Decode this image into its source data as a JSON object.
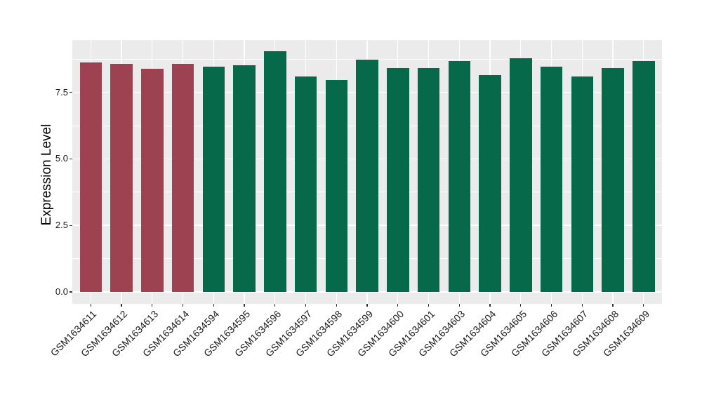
{
  "chart_data": {
    "type": "bar",
    "title": "",
    "xlabel": "",
    "ylabel": "Expression Level",
    "legend_position": "none",
    "grid": true,
    "panel_background": "#EBEBEB",
    "grid_color": "#FFFFFF",
    "axis_text_color": "#1A1A1A",
    "tick_mark_color": "#333333",
    "ylim": [
      -0.45,
      9.47
    ],
    "y_major_ticks": [
      {
        "value": 0.0,
        "label": "0.0"
      },
      {
        "value": 2.5,
        "label": "2.5"
      },
      {
        "value": 5.0,
        "label": "5.0"
      },
      {
        "value": 7.5,
        "label": "7.5"
      }
    ],
    "y_minor_gridlines": [
      1.25,
      3.75,
      6.25,
      8.75
    ],
    "categories": [
      "GSM1634611",
      "GSM1634612",
      "GSM1634613",
      "GSM1634614",
      "GSM1634594",
      "GSM1634595",
      "GSM1634596",
      "GSM1634597",
      "GSM1634598",
      "GSM1634599",
      "GSM1634600",
      "GSM1634601",
      "GSM1634603",
      "GSM1634604",
      "GSM1634605",
      "GSM1634606",
      "GSM1634607",
      "GSM1634608",
      "GSM1634609"
    ],
    "values": [
      8.63,
      8.57,
      8.39,
      8.58,
      8.48,
      8.51,
      9.04,
      8.11,
      7.97,
      8.73,
      8.41,
      8.42,
      8.68,
      8.15,
      8.79,
      8.48,
      8.11,
      8.41,
      8.69
    ],
    "bar_groups": [
      "group1",
      "group1",
      "group1",
      "group1",
      "group2",
      "group2",
      "group2",
      "group2",
      "group2",
      "group2",
      "group2",
      "group2",
      "group2",
      "group2",
      "group2",
      "group2",
      "group2",
      "group2",
      "group2"
    ],
    "group_colors": {
      "group1": "#9C4251",
      "group2": "#05694A"
    }
  }
}
